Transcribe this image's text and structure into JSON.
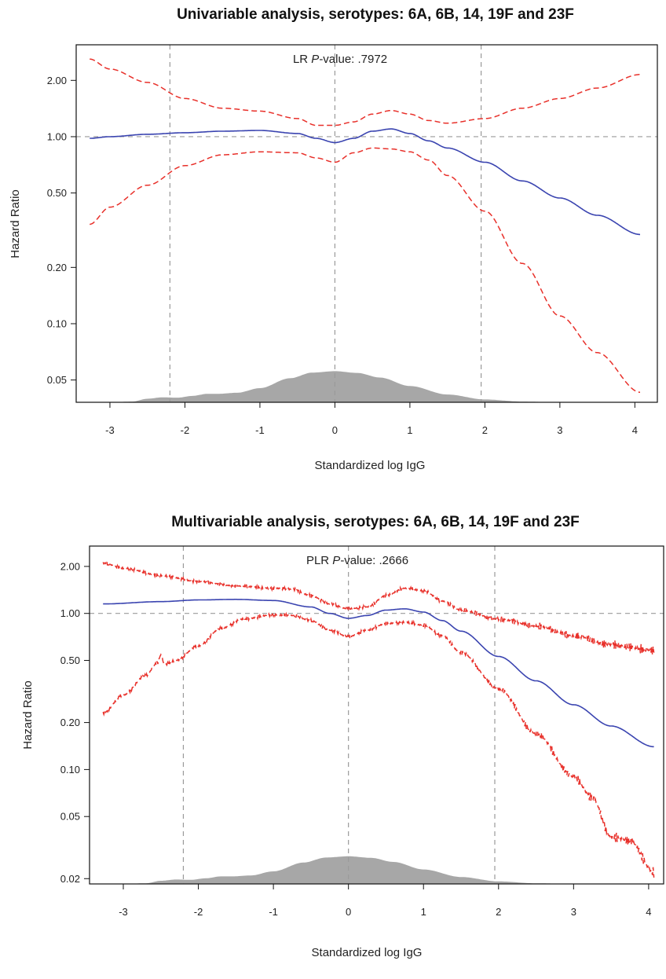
{
  "chart_data": [
    {
      "type": "line",
      "title": "Univariable analysis, serotypes: 6A, 6B, 14, 19F and 23F",
      "xlabel": "Standardized log IgG",
      "ylabel": "Hazard Ratio",
      "annotation": {
        "prefix": "LR ",
        "italic": "P",
        "suffix": "-value: .7972"
      },
      "y_scale": "log",
      "xlim": [
        -3.45,
        4.3
      ],
      "ylim": [
        0.038,
        3.1
      ],
      "x_ticks": [
        -3,
        -2,
        -1,
        0,
        1,
        2,
        3,
        4
      ],
      "x_tick_labels": [
        "-3",
        "-2",
        "-1",
        "0",
        "1",
        "2",
        "3",
        "4"
      ],
      "y_ticks": [
        0.05,
        0.1,
        0.2,
        0.5,
        1.0,
        2.0
      ],
      "y_tick_labels": [
        "0.05",
        "0.10",
        "0.20",
        "0.50",
        "1.00",
        "2.00"
      ],
      "reference_lines": {
        "vertical": [
          -2.2,
          0,
          1.95
        ],
        "horizontal": [
          1.0
        ]
      },
      "series": [
        {
          "role": "estimate",
          "style": "solid",
          "color": "#3a44b0",
          "x": [
            -3.27,
            -3,
            -2.5,
            -2,
            -1.5,
            -1,
            -0.5,
            -0.25,
            0,
            0.25,
            0.5,
            0.75,
            1,
            1.25,
            1.5,
            2,
            2.5,
            3,
            3.5,
            4.07
          ],
          "y": [
            0.98,
            1.0,
            1.03,
            1.05,
            1.07,
            1.08,
            1.04,
            0.98,
            0.93,
            0.98,
            1.07,
            1.1,
            1.04,
            0.95,
            0.87,
            0.73,
            0.58,
            0.47,
            0.38,
            0.3
          ]
        },
        {
          "role": "upper-ci",
          "style": "dashed",
          "color": "#e8302a",
          "x": [
            -3.27,
            -3,
            -2.5,
            -2,
            -1.5,
            -1,
            -0.5,
            -0.25,
            0,
            0.25,
            0.5,
            0.75,
            1,
            1.25,
            1.5,
            2,
            2.5,
            3,
            3.5,
            4.07
          ],
          "y": [
            2.6,
            2.3,
            1.95,
            1.6,
            1.42,
            1.37,
            1.25,
            1.15,
            1.15,
            1.2,
            1.32,
            1.38,
            1.32,
            1.22,
            1.18,
            1.25,
            1.42,
            1.6,
            1.82,
            2.15
          ]
        },
        {
          "role": "lower-ci",
          "style": "dashed",
          "color": "#e8302a",
          "x": [
            -3.27,
            -3,
            -2.5,
            -2,
            -1.5,
            -1,
            -0.5,
            -0.25,
            0,
            0.25,
            0.5,
            0.75,
            1,
            1.25,
            1.5,
            2,
            2.5,
            3,
            3.5,
            4.07
          ],
          "y": [
            0.34,
            0.42,
            0.55,
            0.7,
            0.8,
            0.83,
            0.82,
            0.77,
            0.73,
            0.82,
            0.87,
            0.86,
            0.83,
            0.75,
            0.62,
            0.4,
            0.21,
            0.11,
            0.07,
            0.043
          ]
        }
      ],
      "density": {
        "color": "#a7a7a7",
        "x": [
          -3.4,
          -3.0,
          -2.7,
          -2.5,
          -2.3,
          -2.1,
          -1.9,
          -1.7,
          -1.55,
          -1.3,
          -1.0,
          -0.6,
          -0.3,
          0.0,
          0.3,
          0.6,
          1.0,
          1.5,
          2.0,
          2.5,
          3.0,
          3.2
        ],
        "h": [
          0,
          0,
          0.02,
          0.1,
          0.14,
          0.13,
          0.18,
          0.24,
          0.24,
          0.27,
          0.4,
          0.68,
          0.84,
          0.88,
          0.83,
          0.7,
          0.46,
          0.22,
          0.08,
          0.02,
          0,
          0
        ]
      }
    },
    {
      "type": "line",
      "title": "Multivariable analysis, serotypes: 6A, 6B, 14, 19F and 23F",
      "xlabel": "Standardized log IgG",
      "ylabel": "Hazard Ratio",
      "annotation": {
        "prefix": "PLR ",
        "italic": "P",
        "suffix": "-value: .2666"
      },
      "y_scale": "log",
      "xlim": [
        -3.45,
        4.2
      ],
      "ylim": [
        0.0185,
        2.7
      ],
      "x_ticks": [
        -3,
        -2,
        -1,
        0,
        1,
        2,
        3,
        4
      ],
      "x_tick_labels": [
        "-3",
        "-2",
        "-1",
        "0",
        "1",
        "2",
        "3",
        "4"
      ],
      "y_ticks": [
        0.02,
        0.05,
        0.1,
        0.2,
        0.5,
        1.0,
        2.0
      ],
      "y_tick_labels": [
        "0.02",
        "0.05",
        "0.10",
        "0.20",
        "0.50",
        "1.00",
        "2.00"
      ],
      "reference_lines": {
        "vertical": [
          -2.2,
          0,
          1.95
        ],
        "horizontal": [
          1.0
        ]
      },
      "series": [
        {
          "role": "estimate",
          "style": "solid",
          "color": "#3a44b0",
          "x": [
            -3.27,
            -2.5,
            -2,
            -1.5,
            -1,
            -0.5,
            -0.25,
            0,
            0.25,
            0.5,
            0.75,
            1,
            1.25,
            1.5,
            2,
            2.5,
            3,
            3.5,
            4.07
          ],
          "y": [
            1.15,
            1.19,
            1.22,
            1.23,
            1.21,
            1.1,
            1.0,
            0.93,
            0.97,
            1.05,
            1.07,
            1.02,
            0.9,
            0.77,
            0.53,
            0.37,
            0.26,
            0.19,
            0.14
          ]
        },
        {
          "role": "upper-ci",
          "style": "dashed",
          "color": "#e8302a",
          "x": [
            -3.27,
            -3,
            -2.5,
            -2,
            -1.5,
            -1,
            -0.75,
            -0.5,
            -0.25,
            0,
            0.25,
            0.5,
            0.75,
            1,
            1.25,
            1.5,
            2,
            2.5,
            3,
            3.5,
            4.07
          ],
          "y": [
            2.1,
            1.95,
            1.75,
            1.6,
            1.5,
            1.45,
            1.43,
            1.3,
            1.15,
            1.07,
            1.1,
            1.3,
            1.45,
            1.4,
            1.2,
            1.05,
            0.92,
            0.83,
            0.72,
            0.63,
            0.58
          ]
        },
        {
          "role": "lower-ci",
          "style": "dashed",
          "color": "#e8302a",
          "x": [
            -3.27,
            -3,
            -2.7,
            -2.55,
            -2.5,
            -2.45,
            -2.3,
            -2.0,
            -1.7,
            -1.4,
            -1.0,
            -0.75,
            -0.5,
            -0.25,
            0,
            0.25,
            0.5,
            0.75,
            1,
            1.25,
            1.5,
            2,
            2.5,
            3,
            3.25,
            3.5,
            3.75,
            4.07
          ],
          "y": [
            0.23,
            0.3,
            0.4,
            0.48,
            0.54,
            0.47,
            0.5,
            0.62,
            0.8,
            0.92,
            0.98,
            0.97,
            0.9,
            0.78,
            0.71,
            0.78,
            0.86,
            0.88,
            0.84,
            0.72,
            0.56,
            0.33,
            0.17,
            0.09,
            0.066,
            0.037,
            0.035,
            0.022
          ]
        }
      ],
      "density": {
        "color": "#a7a7a7",
        "x": [
          -3.4,
          -3.0,
          -2.7,
          -2.5,
          -2.3,
          -2.1,
          -1.9,
          -1.7,
          -1.55,
          -1.3,
          -1.0,
          -0.6,
          -0.3,
          0.0,
          0.3,
          0.6,
          1.0,
          1.5,
          2.0,
          2.5,
          3.0,
          3.2
        ],
        "h": [
          0,
          0,
          0.02,
          0.1,
          0.14,
          0.13,
          0.18,
          0.24,
          0.24,
          0.27,
          0.4,
          0.68,
          0.84,
          0.88,
          0.83,
          0.7,
          0.46,
          0.22,
          0.08,
          0.02,
          0,
          0
        ]
      }
    }
  ]
}
